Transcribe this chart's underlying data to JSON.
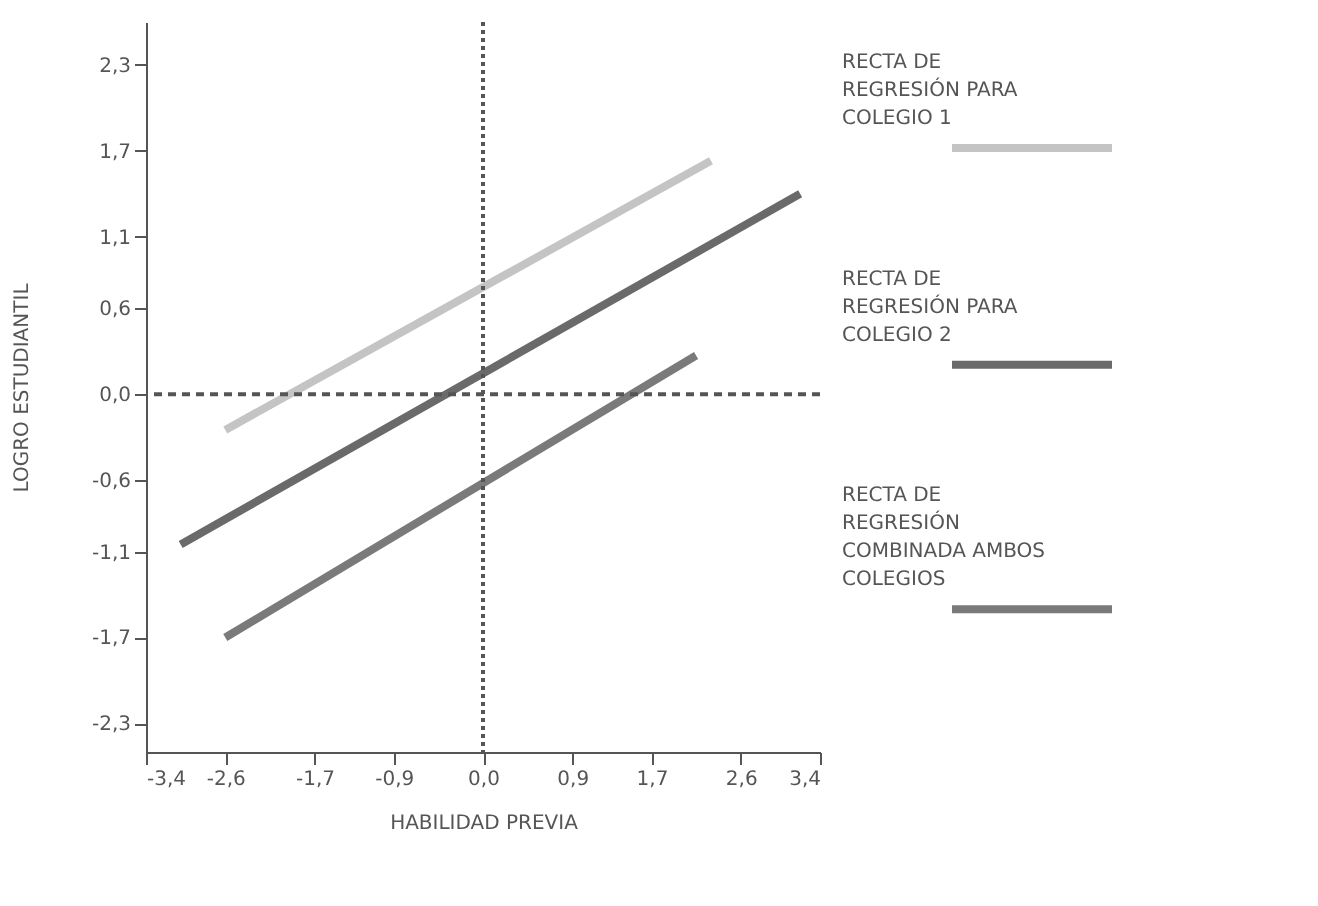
{
  "chart_data": {
    "type": "line",
    "xlabel": "HABILIDAD PREVIA",
    "ylabel": "LOGRO ESTUDIANTIL",
    "series": [
      {
        "name": "RECTA DE REGRESIÓN PARA COLEGIO 1",
        "color": "#c4c4c4",
        "x": [
          -2.6,
          2.3
        ],
        "values": [
          -0.25,
          1.63
        ]
      },
      {
        "name": "RECTA DE REGRESIÓN PARA COLEGIO 2",
        "color": "#6a6a6a",
        "x": [
          -3.05,
          3.2
        ],
        "values": [
          -1.05,
          1.4
        ]
      },
      {
        "name": "RECTA DE REGRESIÓN COMBINADA AMBOS COLEGIOS",
        "color": "#7a7a7a",
        "x": [
          -2.6,
          2.15
        ],
        "values": [
          -1.7,
          0.27
        ]
      }
    ],
    "xlim": [
      -3.4,
      3.4
    ],
    "xticks": [
      {
        "value": -3.4,
        "label": "-3,4"
      },
      {
        "value": -2.6,
        "label": "-2,6"
      },
      {
        "value": -1.7,
        "label": "-1,7"
      },
      {
        "value": -0.9,
        "label": "-0,9"
      },
      {
        "value": 0,
        "label": "0,0"
      },
      {
        "value": 0.9,
        "label": "0,9"
      },
      {
        "value": 1.7,
        "label": "1,7"
      },
      {
        "value": 2.6,
        "label": "2,6"
      },
      {
        "value": 3.4,
        "label": "3,4"
      }
    ],
    "ylim": [
      -2.5,
      2.6
    ],
    "yticks": [
      {
        "value": 2.3,
        "label": "2,3"
      },
      {
        "value": 1.7,
        "label": "1,7"
      },
      {
        "value": 1.1,
        "label": "1,1"
      },
      {
        "value": 0.6,
        "label": "0,6"
      },
      {
        "value": 0,
        "label": "0,0"
      },
      {
        "value": -0.6,
        "label": "-0,6"
      },
      {
        "value": -1.1,
        "label": "-1,1"
      },
      {
        "value": -1.7,
        "label": "-1,7"
      },
      {
        "value": -2.3,
        "label": "-2,3"
      }
    ],
    "ref_lines": [
      {
        "axis": "x",
        "value": 0,
        "color": "#555555",
        "line_style": "dotted"
      },
      {
        "axis": "y",
        "value": 0,
        "color": "#555555",
        "line_style": "dashed"
      }
    ],
    "grid": false,
    "legend": "right",
    "marker": "none",
    "line_style": "solid"
  }
}
